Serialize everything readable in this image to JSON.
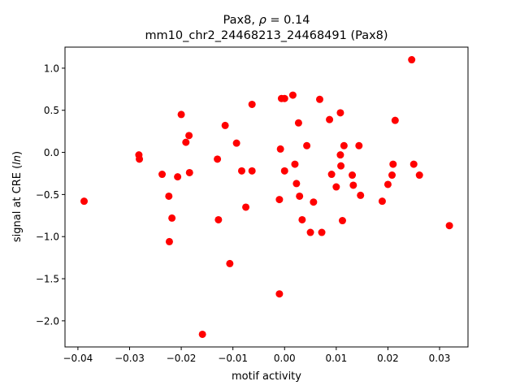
{
  "chart_data": {
    "type": "scatter",
    "title_line1": "Pax8, ρ = 0.14",
    "title_line2": "mm10_chr2_24468213_24468491 (Pax8)",
    "xlabel": "motif activity",
    "ylabel": "signal at CRE (ln)",
    "xlim": [
      -0.0425,
      0.0355
    ],
    "ylim": [
      -2.31,
      1.25
    ],
    "xticks": [
      -0.04,
      -0.03,
      -0.02,
      -0.01,
      0.0,
      0.01,
      0.02,
      0.03
    ],
    "xtick_labels": [
      "−0.04",
      "−0.03",
      "−0.02",
      "−0.01",
      "0.00",
      "0.01",
      "0.02",
      "0.03"
    ],
    "yticks": [
      -2.0,
      -1.5,
      -1.0,
      -0.5,
      0.0,
      0.5,
      1.0
    ],
    "ytick_labels": [
      "−2.0",
      "−1.5",
      "−1.0",
      "−0.5",
      "0.0",
      "0.5",
      "1.0"
    ],
    "grid": false,
    "marker_color": "#ff0000",
    "points": [
      {
        "x": -0.0388,
        "y": -0.58
      },
      {
        "x": -0.0282,
        "y": -0.03
      },
      {
        "x": -0.0281,
        "y": -0.08
      },
      {
        "x": -0.0237,
        "y": -0.26
      },
      {
        "x": -0.0224,
        "y": -0.52
      },
      {
        "x": -0.0223,
        "y": -1.06
      },
      {
        "x": -0.0218,
        "y": -0.78
      },
      {
        "x": -0.0207,
        "y": -0.29
      },
      {
        "x": -0.02,
        "y": 0.45
      },
      {
        "x": -0.0191,
        "y": 0.12
      },
      {
        "x": -0.0185,
        "y": 0.2
      },
      {
        "x": -0.0184,
        "y": -0.24
      },
      {
        "x": -0.0159,
        "y": -2.16
      },
      {
        "x": -0.013,
        "y": -0.08
      },
      {
        "x": -0.0128,
        "y": -0.8
      },
      {
        "x": -0.0115,
        "y": 0.32
      },
      {
        "x": -0.0106,
        "y": -1.32
      },
      {
        "x": -0.0093,
        "y": 0.11
      },
      {
        "x": -0.0083,
        "y": -0.22
      },
      {
        "x": -0.0075,
        "y": -0.65
      },
      {
        "x": -0.0063,
        "y": 0.57
      },
      {
        "x": -0.0063,
        "y": -0.22
      },
      {
        "x": -0.001,
        "y": -1.68
      },
      {
        "x": -0.001,
        "y": -0.56
      },
      {
        "x": -0.0008,
        "y": 0.04
      },
      {
        "x": -0.0006,
        "y": 0.64
      },
      {
        "x": 0.0,
        "y": 0.64
      },
      {
        "x": 0.0,
        "y": -0.22
      },
      {
        "x": 0.0016,
        "y": 0.68
      },
      {
        "x": 0.002,
        "y": -0.14
      },
      {
        "x": 0.0023,
        "y": -0.37
      },
      {
        "x": 0.0027,
        "y": 0.35
      },
      {
        "x": 0.0029,
        "y": -0.52
      },
      {
        "x": 0.0034,
        "y": -0.8
      },
      {
        "x": 0.0043,
        "y": 0.08
      },
      {
        "x": 0.005,
        "y": -0.95
      },
      {
        "x": 0.0056,
        "y": -0.59
      },
      {
        "x": 0.0068,
        "y": 0.63
      },
      {
        "x": 0.0072,
        "y": -0.95
      },
      {
        "x": 0.0087,
        "y": 0.39
      },
      {
        "x": 0.0091,
        "y": -0.26
      },
      {
        "x": 0.01,
        "y": -0.41
      },
      {
        "x": 0.0108,
        "y": 0.47
      },
      {
        "x": 0.0108,
        "y": -0.03
      },
      {
        "x": 0.0109,
        "y": -0.16
      },
      {
        "x": 0.0112,
        "y": -0.81
      },
      {
        "x": 0.0115,
        "y": 0.08
      },
      {
        "x": 0.0131,
        "y": -0.27
      },
      {
        "x": 0.0133,
        "y": -0.39
      },
      {
        "x": 0.0144,
        "y": 0.08
      },
      {
        "x": 0.0147,
        "y": -0.51
      },
      {
        "x": 0.0189,
        "y": -0.58
      },
      {
        "x": 0.02,
        "y": -0.38
      },
      {
        "x": 0.0208,
        "y": -0.27
      },
      {
        "x": 0.021,
        "y": -0.14
      },
      {
        "x": 0.0214,
        "y": 0.38
      },
      {
        "x": 0.0246,
        "y": 1.1
      },
      {
        "x": 0.025,
        "y": -0.14
      },
      {
        "x": 0.0261,
        "y": -0.27
      },
      {
        "x": 0.0319,
        "y": -0.87
      }
    ]
  }
}
